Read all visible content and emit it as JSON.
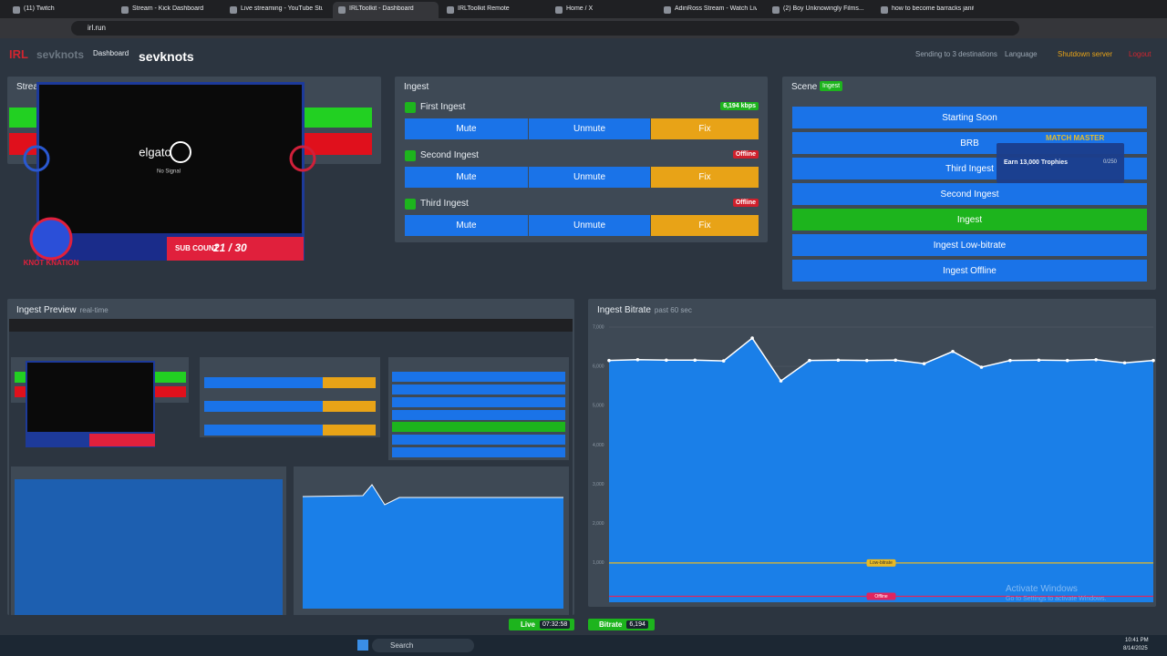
{
  "browser": {
    "tabs": [
      "(11) Twitch",
      "Stream - Kick Dashboard",
      "Live streaming - YouTube Studio",
      "IRLToolkit - Dashboard",
      "IRLToolkit Remote",
      "Home / X",
      "AdinRoss Stream - Watch Live o...",
      "(2) Boy Unknowingly Films...",
      "how to become barracks janitor"
    ],
    "active_tab": 3,
    "url": "irl.run"
  },
  "header": {
    "logo": "IRL",
    "brand": "sevknots",
    "nav": "Dashboard",
    "channel": "sevknots",
    "destinations": "Sending to 3 destinations",
    "language": "Language",
    "shutdown": "Shutdown server",
    "logout": "Logout"
  },
  "stream_panel": {
    "title": "Stream",
    "overlay": {
      "brand": "elgato",
      "status": "No Signal",
      "sub_label": "SUB COUNT",
      "sub_count": "21 / 30",
      "mascot": "KNOT KNATION"
    }
  },
  "ingest_panel": {
    "title": "Ingest",
    "buttons": [
      "Mute",
      "Unmute",
      "Fix"
    ],
    "rows": [
      {
        "name": "First Ingest",
        "status": "6,194 kbps",
        "live": true
      },
      {
        "name": "Second Ingest",
        "status": "Offline",
        "live": false
      },
      {
        "name": "Third Ingest",
        "status": "Offline",
        "live": false
      }
    ]
  },
  "scene_panel": {
    "title": "Scene",
    "badge": "Ingest",
    "active": 4,
    "scenes": [
      "Starting Soon",
      "BRB",
      "Third Ingest",
      "Second Ingest",
      "Ingest",
      "Ingest Low-bitrate",
      "Ingest Offline"
    ],
    "popup": {
      "title": "MATCH MASTER",
      "text": "Earn 13,000 Trophies",
      "progress": "0/250"
    }
  },
  "preview_panel": {
    "title": "Ingest Preview",
    "subtitle": "real-time"
  },
  "bitrate_panel": {
    "title": "Ingest Bitrate",
    "subtitle": "past 60 sec",
    "ylim": [
      0,
      7000
    ],
    "yticks": [
      {
        "value": 1000,
        "label": "1,000"
      },
      {
        "value": 2000,
        "label": "2,000"
      },
      {
        "value": 3000,
        "label": "3,000"
      },
      {
        "value": 4000,
        "label": "4,000"
      },
      {
        "value": 5000,
        "label": "5,000"
      },
      {
        "value": 6000,
        "label": "6,000"
      },
      {
        "value": 7000,
        "label": "7,000"
      }
    ],
    "values": [
      6150,
      6170,
      6160,
      6160,
      6140,
      6720,
      5630,
      6150,
      6160,
      6150,
      6160,
      6070,
      6380,
      5980,
      6150,
      6160,
      6150,
      6170,
      6090,
      6150
    ],
    "line_color": "#ffffff",
    "fill_color": "#1a7fe8",
    "thresholds": [
      {
        "label": "Low-bitrate",
        "value": 1000,
        "color": "#e8b923"
      },
      {
        "label": "Offline",
        "value": 150,
        "color": "#e0245e"
      }
    ]
  },
  "status_bar": {
    "live_label": "Live",
    "live_time": "07:32:58",
    "bitrate_label": "Bitrate",
    "bitrate_value": "6,194"
  },
  "watermark": {
    "title": "Activate Windows",
    "text": "Go to Settings to activate Windows."
  },
  "taskbar": {
    "search": "Search",
    "time": "10:41 PM",
    "date": "8/14/2025"
  }
}
